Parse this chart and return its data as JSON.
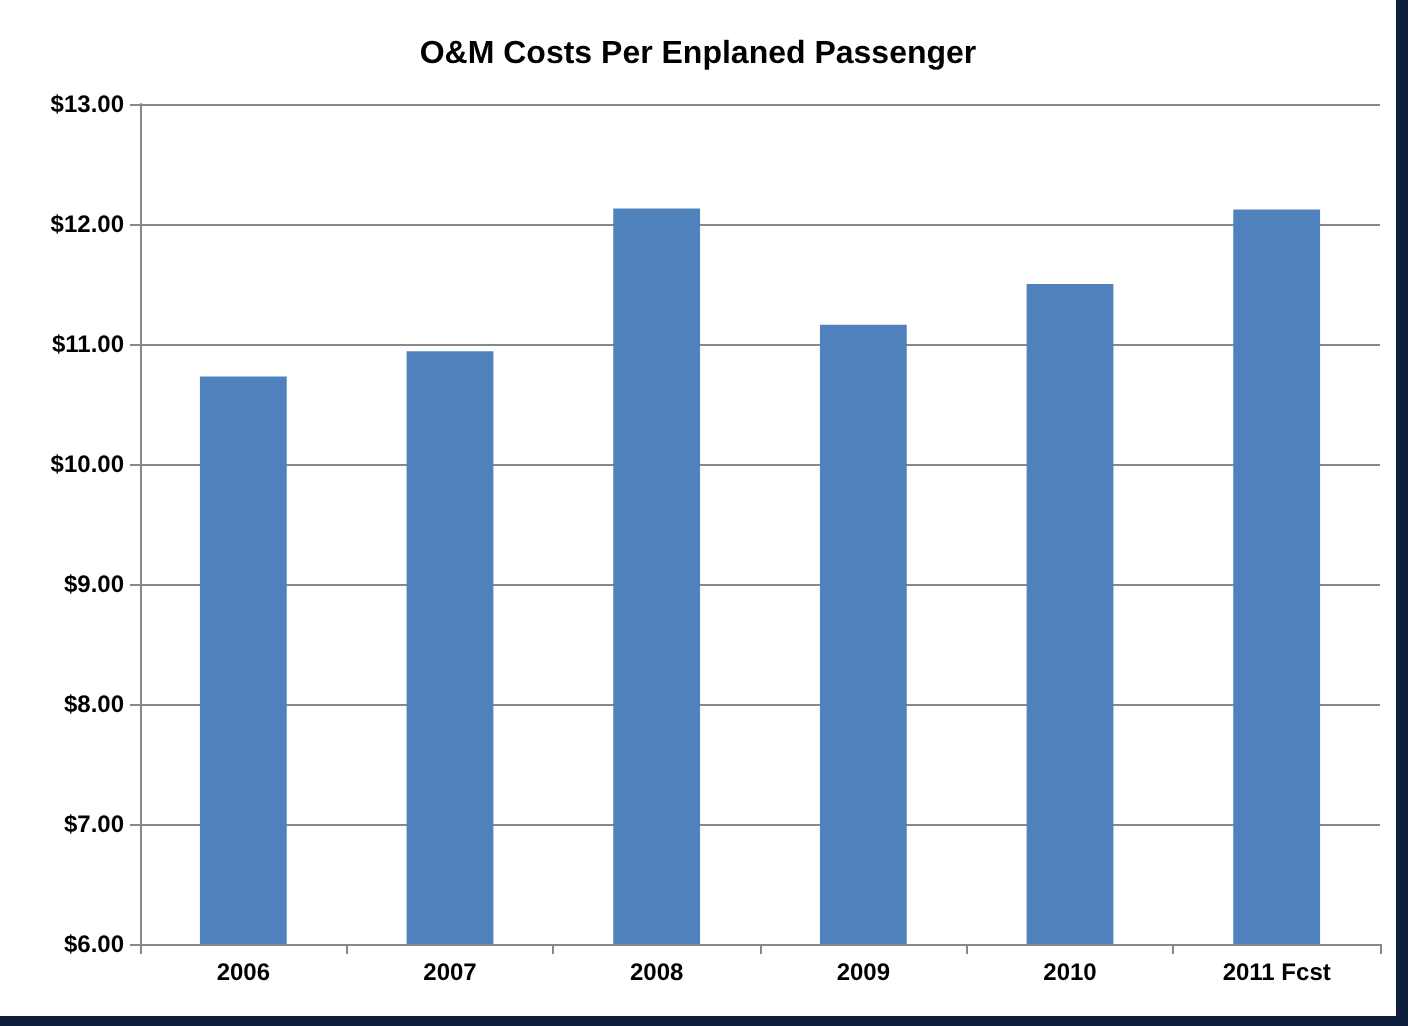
{
  "chart_data": {
    "type": "bar",
    "title": "O&M Costs Per Enplaned Passenger",
    "categories": [
      "2006",
      "2007",
      "2008",
      "2009",
      "2010",
      "2011 Fcst"
    ],
    "values": [
      10.73,
      10.94,
      12.13,
      11.16,
      11.5,
      12.12
    ],
    "color": "#4f81bd",
    "ylim": [
      6,
      13
    ],
    "yticks": [
      {
        "value": 6,
        "label": "$6.00"
      },
      {
        "value": 7,
        "label": "$7.00"
      },
      {
        "value": 8,
        "label": "$8.00"
      },
      {
        "value": 9,
        "label": "$9.00"
      },
      {
        "value": 10,
        "label": "$10.00"
      },
      {
        "value": 11,
        "label": "$11.00"
      },
      {
        "value": 12,
        "label": "$12.00"
      },
      {
        "value": 13,
        "label": "$13.00"
      }
    ],
    "grid": "y"
  }
}
